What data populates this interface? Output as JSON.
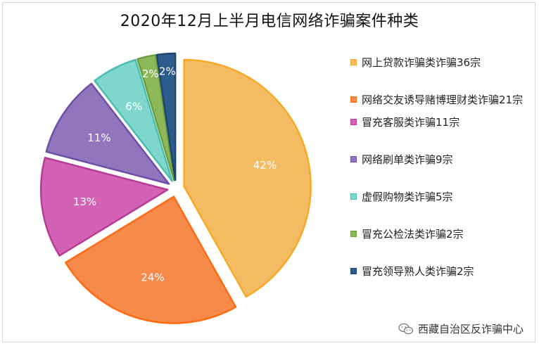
{
  "chart_data": {
    "type": "pie",
    "title": "2020年12月上半月电信网络诈骗案件种类",
    "slices": [
      {
        "label": "网上贷款诈骗类诈骗36宗",
        "value": 36,
        "percent_label": "42%",
        "color": "#F3BC62",
        "edge": "#F9A825"
      },
      {
        "label": "网络交友诱导赌博理财类诈骗21宗",
        "value": 21,
        "percent_label": "24%",
        "color": "#F58A4B",
        "edge": "#FF6A13"
      },
      {
        "label": "冒充客服类诈骗11宗",
        "value": 11,
        "percent_label": "13%",
        "color": "#D462B4",
        "edge": "#B83A98"
      },
      {
        "label": "网络刷单类诈骗9宗",
        "value": 9,
        "percent_label": "11%",
        "color": "#9176BE",
        "edge": "#6E4FA6"
      },
      {
        "label": "虚假购物类诈骗5宗",
        "value": 5,
        "percent_label": "6%",
        "color": "#7FD6CC",
        "edge": "#4CBDB1"
      },
      {
        "label": "冒充公检法类诈骗2宗",
        "value": 2,
        "percent_label": "2%",
        "color": "#8CB85A",
        "edge": "#6E9E3B"
      },
      {
        "label": "冒充领导熟人类诈骗2宗",
        "value": 2,
        "percent_label": "2%",
        "color": "#2C5C8C",
        "edge": "#1E4470"
      }
    ],
    "legend_position": "right"
  },
  "watermark": {
    "text": "西藏自治区反诈骗中心",
    "icon": "wechat-icon"
  }
}
